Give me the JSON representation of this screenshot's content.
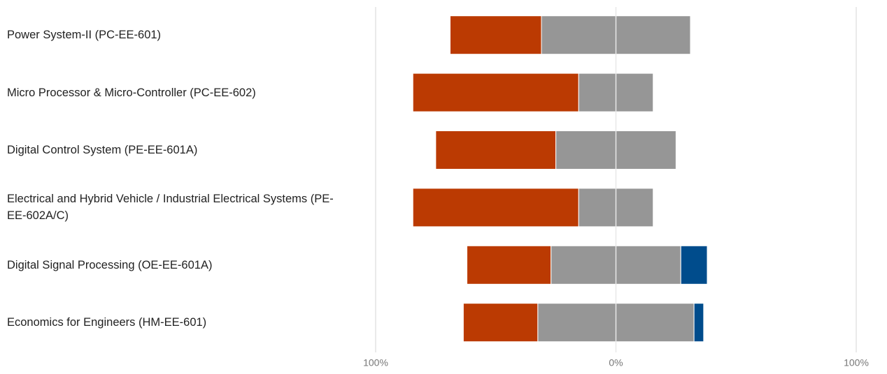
{
  "chart_data": {
    "type": "bar",
    "orientation": "horizontal",
    "stacking": "diverging",
    "categories": [
      "Power System-II (PC-EE-601)",
      "Micro Processor & Micro-Controller (PC-EE-602)",
      "Digital Control System (PE-EE-601A)",
      "Electrical and Hybrid Vehicle / Industrial Electrical Systems (PE-EE-602A/C)",
      "Digital Signal Processing (OE-EE-601A)",
      "Economics for Engineers (HM-EE-601)"
    ],
    "series": [
      {
        "color": "#bb3a02",
        "values": [
          38,
          69,
          50,
          69,
          35,
          31
        ]
      },
      {
        "color": "#969696",
        "values": [
          62,
          31,
          50,
          31,
          54,
          65
        ]
      },
      {
        "color": "#004c8c",
        "values": [
          null,
          null,
          null,
          null,
          11,
          4
        ]
      }
    ],
    "xlim": [
      -100,
      100
    ],
    "xticks": [
      {
        "value": -100,
        "label": "100%"
      },
      {
        "value": 0,
        "label": "0%"
      },
      {
        "value": 100,
        "label": "100%"
      }
    ],
    "grid": true
  }
}
